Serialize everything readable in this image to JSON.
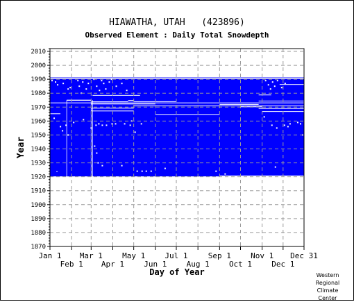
{
  "chart_data": {
    "type": "heatmap",
    "title": "HIAWATHA, UTAH   (423896)",
    "subtitle": "Observed Element : Daily Total Snowdepth",
    "xlabel": "Day of Year",
    "ylabel": "Year",
    "x_tick_labels_row1": [
      "Jan 1",
      "Mar 1",
      "May 1",
      "Jul 1",
      "Sep 1",
      "Nov 1",
      "Dec 31"
    ],
    "x_tick_labels_row2": [
      "Feb 1",
      "Apr 1",
      "Jun 1",
      "Aug 1",
      "Oct 1",
      "Dec 1"
    ],
    "x_ticks_row1_doy": [
      1,
      60,
      121,
      182,
      244,
      305,
      365
    ],
    "x_ticks_row2_doy": [
      32,
      91,
      152,
      213,
      274,
      335
    ],
    "xlim": [
      1,
      365
    ],
    "ylim": [
      1870,
      2012
    ],
    "y_tick_labels": [
      1870,
      1880,
      1890,
      1900,
      1910,
      1920,
      1930,
      1940,
      1950,
      1960,
      1970,
      1980,
      1990,
      2000,
      2010
    ],
    "grid": true,
    "data_color": "#0000ff",
    "data_coverage": {
      "year_start": 1920.3,
      "year_end": 1991.3,
      "description_of_gaps": "white = missing day"
    },
    "missing_bands": [
      {
        "y0": 1990.2,
        "y1": 1990.9,
        "d0": 1,
        "d1": 365
      },
      {
        "y0": 1986.0,
        "y1": 1986.5,
        "d0": 330,
        "d1": 365
      },
      {
        "y0": 1978.2,
        "y1": 1978.7,
        "d0": 62,
        "d1": 130
      },
      {
        "y0": 1978.5,
        "y1": 1979.0,
        "d0": 300,
        "d1": 318
      },
      {
        "y0": 1974.6,
        "y1": 1975.3,
        "d0": 25,
        "d1": 60
      },
      {
        "y0": 1974.3,
        "y1": 1975.0,
        "d0": 113,
        "d1": 121
      },
      {
        "y0": 1974.2,
        "y1": 1974.6,
        "d0": 300,
        "d1": 365
      },
      {
        "y0": 1973.6,
        "y1": 1974.1,
        "d0": 60,
        "d1": 113
      },
      {
        "y0": 1973.8,
        "y1": 1974.2,
        "d0": 121,
        "d1": 182
      },
      {
        "y0": 1972.8,
        "y1": 1973.3,
        "d0": 1,
        "d1": 365
      },
      {
        "y0": 1972.0,
        "y1": 1972.5,
        "d0": 60,
        "d1": 152
      },
      {
        "y0": 1971.8,
        "y1": 1972.2,
        "d0": 244,
        "d1": 300
      },
      {
        "y0": 1970.7,
        "y1": 1971.1,
        "d0": 121,
        "d1": 365
      },
      {
        "y0": 1970.0,
        "y1": 1970.5,
        "d0": 274,
        "d1": 305
      },
      {
        "y0": 1969.1,
        "y1": 1969.5,
        "d0": 60,
        "d1": 121
      },
      {
        "y0": 1968.9,
        "y1": 1969.3,
        "d0": 300,
        "d1": 365
      },
      {
        "y0": 1967.0,
        "y1": 1967.5,
        "d0": 60,
        "d1": 121
      },
      {
        "y0": 1966.7,
        "y1": 1967.1,
        "d0": 305,
        "d1": 365
      },
      {
        "y0": 1965.0,
        "y1": 1965.5,
        "d0": 1,
        "d1": 16
      },
      {
        "y0": 1964.6,
        "y1": 1965.0,
        "d0": 152,
        "d1": 244
      },
      {
        "y0": 1923.5,
        "y1": 1924.0,
        "d0": 10,
        "d1": 12
      },
      {
        "y0": 1920.3,
        "y1": 1920.9,
        "d0": 244,
        "d1": 365
      },
      {
        "y0": 1920.3,
        "y1": 1920.8,
        "d0": 60,
        "d1": 62
      }
    ],
    "missing_lines": [
      {
        "doy": 25,
        "y0": 1920.3,
        "y1": 1975.0
      },
      {
        "doy": 60,
        "y0": 1920.3,
        "y1": 1975.0
      },
      {
        "doy": 62,
        "y0": 1920.3,
        "y1": 1975.0
      }
    ],
    "missing_dots": [
      [
        4,
        1989
      ],
      [
        9,
        1988
      ],
      [
        12,
        1986
      ],
      [
        20,
        1987
      ],
      [
        27,
        1983
      ],
      [
        30,
        1984
      ],
      [
        41,
        1989
      ],
      [
        43,
        1985
      ],
      [
        46,
        1980
      ],
      [
        48,
        1988
      ],
      [
        53,
        1983
      ],
      [
        56,
        1987
      ],
      [
        64,
        1990
      ],
      [
        68,
        1985
      ],
      [
        72,
        1982
      ],
      [
        75,
        1989
      ],
      [
        78,
        1987
      ],
      [
        81,
        1983
      ],
      [
        86,
        1988
      ],
      [
        89,
        1990
      ],
      [
        96,
        1985
      ],
      [
        104,
        1987
      ],
      [
        111,
        1982
      ],
      [
        310,
        1989
      ],
      [
        314,
        1986
      ],
      [
        317,
        1983
      ],
      [
        320,
        1988
      ],
      [
        323,
        1985
      ],
      [
        327,
        1989
      ],
      [
        333,
        1984
      ],
      [
        338,
        1987
      ],
      [
        7,
        1962
      ],
      [
        16,
        1956
      ],
      [
        19,
        1953
      ],
      [
        24,
        1957
      ],
      [
        27,
        1950
      ],
      [
        35,
        1959
      ],
      [
        49,
        1961
      ],
      [
        60,
        1955
      ],
      [
        67,
        1957
      ],
      [
        71,
        1958
      ],
      [
        76,
        1957
      ],
      [
        82,
        1957
      ],
      [
        90,
        1958
      ],
      [
        95,
        1958
      ],
      [
        108,
        1958
      ],
      [
        116,
        1957
      ],
      [
        118,
        1960
      ],
      [
        123,
        1952
      ],
      [
        132,
        1958
      ],
      [
        308,
        1963
      ],
      [
        319,
        1957
      ],
      [
        326,
        1955
      ],
      [
        337,
        1957
      ],
      [
        342,
        1956
      ],
      [
        345,
        1958
      ],
      [
        356,
        1959
      ],
      [
        360,
        1958
      ],
      [
        363,
        1950
      ],
      [
        65,
        1942
      ],
      [
        68,
        1937
      ],
      [
        70,
        1930
      ],
      [
        76,
        1928
      ],
      [
        104,
        1928
      ],
      [
        126,
        1924
      ],
      [
        133,
        1924
      ],
      [
        139,
        1924
      ],
      [
        146,
        1924
      ],
      [
        166,
        1926
      ],
      [
        239,
        1924
      ],
      [
        252,
        1922
      ],
      [
        324,
        1927
      ]
    ]
  },
  "credit": [
    "Western",
    "Regional",
    "Climate",
    "Center"
  ]
}
